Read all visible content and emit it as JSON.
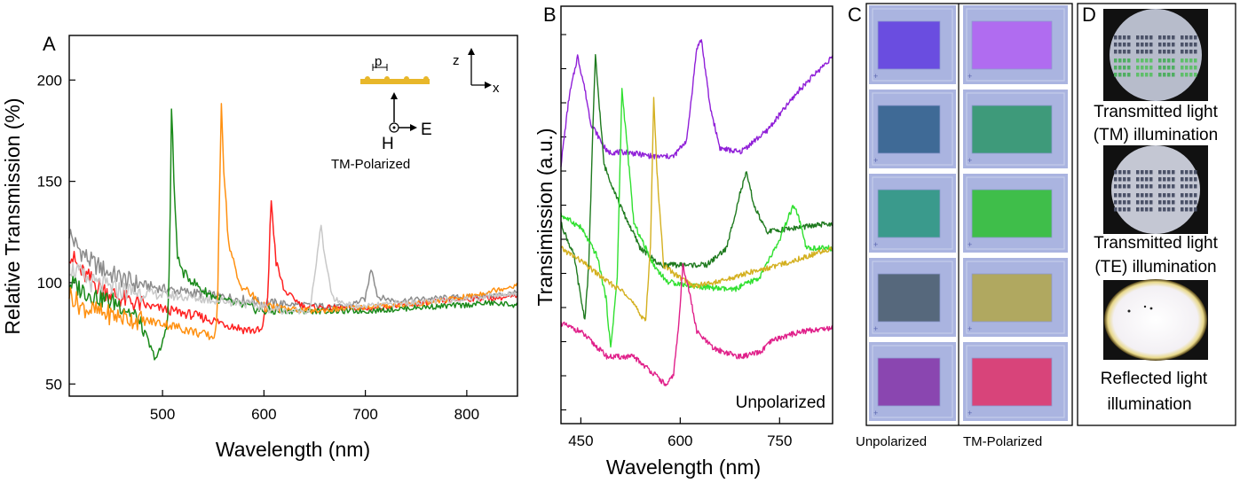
{
  "panels": {
    "A": {
      "letter": "A",
      "chart_data": {
        "type": "line",
        "xlabel": "Wavelength (nm)",
        "ylabel": "Relative Transmission (%)",
        "xlim": [
          408,
          850
        ],
        "ylim": [
          44,
          222
        ],
        "xticks": [
          500,
          600,
          700,
          800
        ],
        "yticks": [
          50,
          100,
          150,
          200
        ],
        "inset": {
          "polarization": "TM-Polarized",
          "p": "p",
          "H": "H",
          "E": "E",
          "z": "z",
          "x": "x",
          "grating_color": "#e8b72a"
        },
        "series": [
          {
            "color": "#8c8c8c",
            "x": [
              408,
              415,
              430,
              450,
              470,
              500,
              530,
              560,
              600,
              640,
              680,
              700,
              706,
              712,
              730,
              760,
              800,
              830,
              850
            ],
            "y": [
              125,
              118,
              110,
              104,
              100,
              97,
              95,
              93,
              90,
              89,
              88,
              92,
              108,
              93,
              91,
              92,
              93,
              94,
              95
            ]
          },
          {
            "color": "#ff2020",
            "x": [
              408,
              420,
              440,
              460,
              480,
              500,
              530,
              560,
              580,
              598,
              604,
              607,
              612,
              620,
              640,
              700,
              760,
              800,
              850
            ],
            "y": [
              115,
              105,
              97,
              92,
              89,
              87,
              84,
              80,
              77,
              76,
              95,
              142,
              110,
              96,
              88,
              87,
              90,
              92,
              93
            ]
          },
          {
            "color": "#1a8a1a",
            "x": [
              408,
              430,
              460,
              475,
              485,
              490,
              495,
              500,
              505,
              507,
              509,
              511,
              515,
              520,
              540,
              560,
              600,
              700,
              760,
              800,
              820,
              850
            ],
            "y": [
              100,
              94,
              89,
              82,
              72,
              65,
              63,
              70,
              82,
              110,
              195,
              150,
              112,
              105,
              96,
              91,
              86,
              86,
              88,
              89,
              90,
              89
            ]
          },
          {
            "color": "#ff9010",
            "x": [
              408,
              420,
              440,
              470,
              500,
              530,
              550,
              554,
              556,
              558,
              560,
              565,
              575,
              600,
              650,
              700,
              760,
              800,
              850
            ],
            "y": [
              95,
              88,
              85,
              82,
              80,
              76,
              73,
              80,
              140,
              190,
              160,
              120,
              100,
              88,
              86,
              88,
              90,
              93,
              99
            ]
          },
          {
            "color": "#c8c8c8",
            "x": [
              408,
              430,
              460,
              500,
              540,
              580,
              620,
              645,
              652,
              656,
              660,
              668,
              690,
              740,
              800,
              850
            ],
            "y": [
              108,
              100,
              96,
              94,
              92,
              90,
              86,
              86,
              110,
              130,
              112,
              92,
              88,
              90,
              92,
              95
            ]
          }
        ]
      }
    },
    "B": {
      "letter": "B",
      "chart_data": {
        "type": "line",
        "xlabel": "Wavelength (nm)",
        "ylabel": "Transimission (a.u.)",
        "annotation": "Unpolarized",
        "xlim": [
          420,
          830
        ],
        "xticks": [
          450,
          600,
          750
        ],
        "series": [
          {
            "color": "#9020d8",
            "x": [
              420,
              432,
              445,
              455,
              465,
              490,
              520,
              560,
              590,
              610,
              625,
              632,
              645,
              660,
              690,
              730,
              780,
              830
            ],
            "y": [
              62,
              78,
              88,
              81,
              72,
              65,
              65,
              64,
              64,
              68,
              90,
              92,
              76,
              66,
              65,
              70,
              80,
              88
            ]
          },
          {
            "color": "#1f7a1f",
            "x": [
              420,
              440,
              450,
              456,
              462,
              468,
              472,
              485,
              510,
              540,
              570,
              600,
              640,
              670,
              690,
              700,
              712,
              730,
              780,
              830
            ],
            "y": [
              48,
              40,
              30,
              25,
              38,
              70,
              88,
              62,
              52,
              42,
              38,
              38,
              38,
              42,
              55,
              60,
              52,
              46,
              47,
              48
            ]
          },
          {
            "color": "#30e030",
            "x": [
              420,
              450,
              475,
              488,
              495,
              505,
              512,
              518,
              530,
              560,
              580,
              620,
              680,
              720,
              750,
              770,
              778,
              790,
              830
            ],
            "y": [
              50,
              47,
              40,
              30,
              18,
              35,
              80,
              70,
              48,
              38,
              34,
              33,
              32,
              35,
              44,
              52,
              50,
              42,
              42
            ]
          },
          {
            "color": "#d4b020",
            "x": [
              420,
              450,
              490,
              520,
              540,
              548,
              555,
              560,
              565,
              575,
              590,
              620,
              660,
              700,
              750,
              790,
              830
            ],
            "y": [
              42,
              39,
              34,
              31,
              26,
              25,
              42,
              78,
              60,
              38,
              36,
              33,
              34,
              36,
              38,
              40,
              42
            ]
          },
          {
            "color": "#e0208a",
            "x": [
              420,
              450,
              490,
              530,
              560,
              580,
              590,
              598,
              604,
              612,
              625,
              650,
              690,
              720,
              740,
              780,
              830
            ],
            "y": [
              24,
              22,
              16,
              16,
              12,
              9,
              12,
              24,
              38,
              33,
              22,
              18,
              16,
              17,
              20,
              22,
              23
            ]
          }
        ]
      }
    },
    "C": {
      "letter": "C",
      "label_unpolarized": "Unpolarized",
      "label_tm": "TM-Polarized",
      "left_colors": [
        "#6a4de0",
        "#3f6a96",
        "#3a9a8c",
        "#56687c",
        "#8a46b0"
      ],
      "right_colors": [
        "#b06cf0",
        "#3e9a7a",
        "#3fbe4a",
        "#b0a860",
        "#d8447a"
      ],
      "frame_color": "#9aa8d8"
    },
    "D": {
      "letter": "D",
      "cap1_line1": "Transmitted light",
      "cap1_line2": "(TM) illumination",
      "cap2_line1": "Transmitted light",
      "cap2_line2": "(TE) illumination",
      "cap3_line1": "Reflected light",
      "cap3_line2": "illumination"
    }
  }
}
